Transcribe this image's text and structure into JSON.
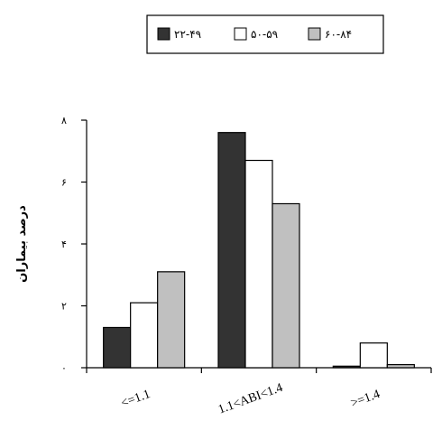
{
  "chart_data": {
    "type": "bar",
    "title": "",
    "xlabel": "",
    "ylabel": "درصد بیماران",
    "ylim": [
      0,
      8
    ],
    "yticks": [
      "۰",
      "۲",
      "۴",
      "۶",
      "۸"
    ],
    "ytick_values": [
      0,
      2,
      4,
      6,
      8
    ],
    "grid": false,
    "legend": "top-center",
    "categories": [
      "<=1.1",
      "1.1<ABI<1.4",
      ">=1.4"
    ],
    "series": [
      {
        "name": "۲۲-۴۹",
        "color": "#333333",
        "values": [
          1.3,
          7.6,
          0.05
        ]
      },
      {
        "name": "۵۰-۵۹",
        "color": "#ffffff",
        "values": [
          2.1,
          6.7,
          0.8
        ]
      },
      {
        "name": "۶۰-۸۴",
        "color": "#c0c0c0",
        "values": [
          3.1,
          5.3,
          0.1
        ]
      }
    ]
  }
}
